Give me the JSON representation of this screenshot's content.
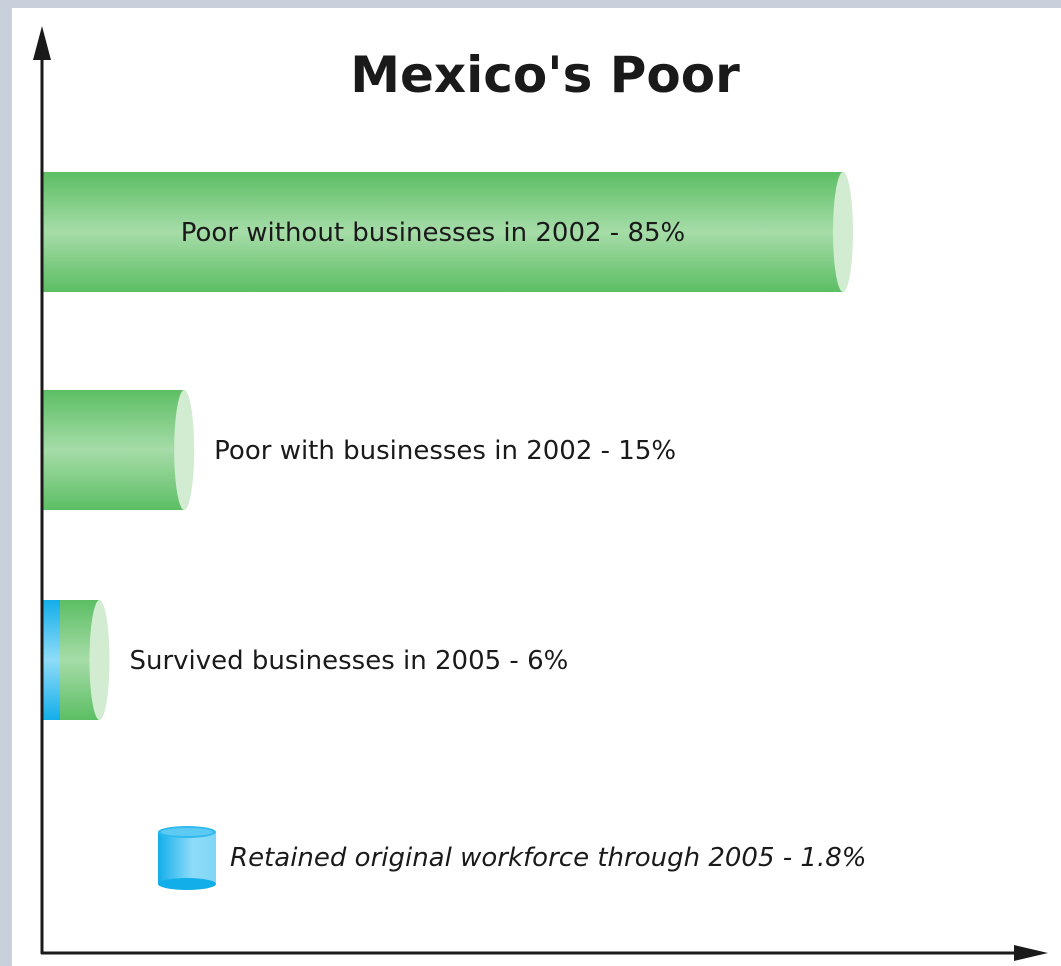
{
  "chart_data": {
    "type": "bar",
    "orientation": "horizontal",
    "title": "Mexico's Poor",
    "xlabel": "",
    "ylabel": "",
    "xlim": [
      0,
      100
    ],
    "grid": false,
    "bars": [
      {
        "label": "Poor without businesses in 2002 - 85%",
        "value": 85,
        "label_position": "inside"
      },
      {
        "label": "Poor with businesses in 2002 - 15%",
        "value": 15,
        "label_position": "outside"
      },
      {
        "label": "Survived businesses in 2005 - 6%",
        "value": 6,
        "sub_value": 1.8,
        "label_position": "outside"
      }
    ],
    "legend": [
      {
        "label": "Retained original workforce through 2005 - 1.8%",
        "color": "#18b3ee"
      }
    ],
    "colors": {
      "green_dark": "#5cbe64",
      "green_light": "#a6dca8",
      "green_cap": "#d2ecd2",
      "blue_dark": "#12aeea",
      "blue_light": "#8fdcf8",
      "axis": "#1a1a1a",
      "frame": "#c9d0dc"
    }
  }
}
